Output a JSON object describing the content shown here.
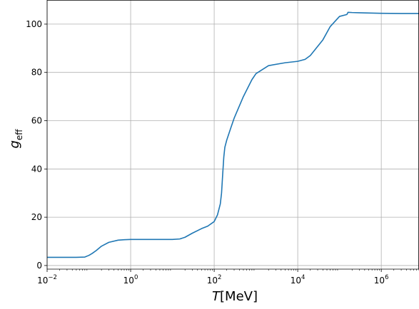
{
  "chart_data": {
    "type": "line",
    "xscale": "log",
    "xlim": [
      0.01,
      8000000
    ],
    "ylim": [
      -1.5,
      110
    ],
    "grid": true,
    "xlabel": {
      "main": "T",
      "unit": "[MeV]"
    },
    "ylabel": {
      "main": "g",
      "sub": "eff"
    },
    "x_ticks": [
      {
        "value": 0.01,
        "base": "10",
        "exp": "−2"
      },
      {
        "value": 1,
        "base": "10",
        "exp": "0"
      },
      {
        "value": 100,
        "base": "10",
        "exp": "2"
      },
      {
        "value": 10000,
        "base": "10",
        "exp": "4"
      },
      {
        "value": 1000000,
        "base": "10",
        "exp": "6"
      }
    ],
    "y_ticks": [
      {
        "value": 0,
        "label": "0"
      },
      {
        "value": 20,
        "label": "20"
      },
      {
        "value": 40,
        "label": "40"
      },
      {
        "value": 60,
        "label": "60"
      },
      {
        "value": 80,
        "label": "80"
      },
      {
        "value": 100,
        "label": "100"
      }
    ],
    "colors": {
      "line": "#1f77b4",
      "grid": "#b0b0b0"
    },
    "series": [
      {
        "x": [
          0.01,
          0.02,
          0.05,
          0.08,
          0.1,
          0.12,
          0.15,
          0.2,
          0.3,
          0.5,
          0.7,
          1,
          2,
          5,
          10,
          15,
          20,
          30,
          50,
          70,
          100,
          120,
          140,
          150,
          160,
          170,
          180,
          200,
          250,
          300,
          500,
          800,
          1000,
          2000,
          5000,
          10000,
          15000,
          20000,
          40000,
          60000,
          100000,
          150000,
          160000,
          200000,
          300000,
          1000000,
          3000000,
          8000000
        ],
        "y": [
          3.4,
          3.4,
          3.4,
          3.5,
          4.2,
          5.0,
          6.2,
          8.0,
          9.6,
          10.5,
          10.7,
          10.8,
          10.8,
          10.8,
          10.8,
          11.0,
          11.7,
          13.4,
          15.3,
          16.3,
          18.2,
          21.0,
          25.5,
          30.0,
          38.0,
          45.0,
          49.0,
          52.0,
          57.0,
          61.0,
          70.0,
          77.0,
          79.5,
          82.8,
          84.0,
          84.6,
          85.4,
          87.0,
          93.5,
          99.0,
          103.2,
          104.0,
          104.9,
          104.8,
          104.7,
          104.5,
          104.4,
          104.4
        ]
      }
    ]
  }
}
